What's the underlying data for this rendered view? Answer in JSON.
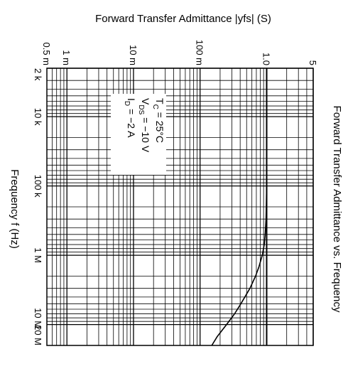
{
  "chart_data": {
    "type": "line",
    "title": "Forward Transfer Admittance vs. Frequency",
    "xlabel": "Frequency  f  (Hz)",
    "ylabel": "Forward Transfer Admittance  |yfs|  (S)",
    "x_scale": "log",
    "y_scale": "log",
    "xlim": [
      2000,
      20000000
    ],
    "ylim": [
      0.0005,
      5
    ],
    "x_tick_labels": [
      {
        "value": 2000,
        "label": "2 k"
      },
      {
        "value": 10000,
        "label": "10 k"
      },
      {
        "value": 100000,
        "label": "100 k"
      },
      {
        "value": 1000000,
        "label": "1 M"
      },
      {
        "value": 10000000,
        "label": "10 M"
      },
      {
        "value": 20000000,
        "label": "20 M"
      }
    ],
    "y_tick_labels": [
      {
        "value": 0.0005,
        "label": "0.5 m"
      },
      {
        "value": 0.001,
        "label": "1 m"
      },
      {
        "value": 0.01,
        "label": "10 m"
      },
      {
        "value": 0.1,
        "label": "100 m"
      },
      {
        "value": 1,
        "label": "1.0"
      },
      {
        "value": 5,
        "label": "5"
      }
    ],
    "grid": true,
    "annotation": {
      "line1_main": "T",
      "line1_sub": "C",
      "line1_rest": " = 25°C",
      "line2_main": "V",
      "line2_sub": "DS",
      "line2_rest": " = −10 V",
      "line3_main": "I",
      "line3_sub": "D",
      "line3_rest": " = −2 A"
    },
    "series": [
      {
        "x": [
          2000,
          10000,
          100000,
          300000,
          500000,
          700000,
          1000000,
          1500000,
          2000000,
          3000000,
          5000000,
          7000000,
          10000000,
          15000000,
          20000000
        ],
        "y": [
          1.0,
          1.0,
          1.0,
          0.98,
          0.95,
          0.92,
          0.86,
          0.76,
          0.68,
          0.56,
          0.41,
          0.33,
          0.25,
          0.18,
          0.15
        ]
      }
    ]
  }
}
